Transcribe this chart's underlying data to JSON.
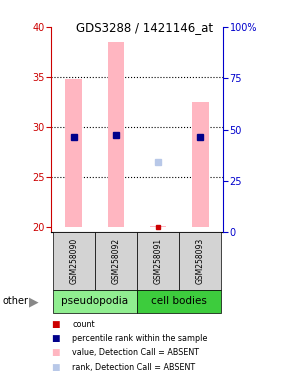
{
  "title": "GDS3288 / 1421146_at",
  "samples": [
    "GSM258090",
    "GSM258092",
    "GSM258091",
    "GSM258093"
  ],
  "group_colors": {
    "pseudopodia": "#90EE90",
    "cell bodies": "#3DCC3D"
  },
  "bar_color_absent": "#FFB6C1",
  "dot_color_rank_absent": "#B8C8E8",
  "dot_color_percentile": "#00008B",
  "dot_color_count": "#CC0000",
  "ylim_left": [
    19.5,
    40
  ],
  "ylim_right": [
    0,
    100
  ],
  "yticks_left": [
    20,
    25,
    30,
    35,
    40
  ],
  "yticks_right": [
    0,
    25,
    50,
    75,
    100
  ],
  "ytick_labels_right": [
    "0",
    "25",
    "50",
    "75",
    "100%"
  ],
  "bar_bottoms": [
    20,
    20,
    20,
    20
  ],
  "bar_tops": [
    34.8,
    38.5,
    20.15,
    32.5
  ],
  "bar_width": 0.4,
  "percentile_ranks": [
    29.0,
    29.2,
    null,
    29.0
  ],
  "rank_absent": [
    null,
    null,
    26.5,
    null
  ],
  "count_values": [
    null,
    null,
    20.08,
    null
  ],
  "grid_yticks": [
    25,
    30,
    35
  ],
  "left_axis_color": "#CC0000",
  "right_axis_color": "#0000CC",
  "groups_info": [
    {
      "label": "pseudopodia",
      "xstart": 0,
      "xend": 1,
      "color": "#90EE90"
    },
    {
      "label": "cell bodies",
      "xstart": 2,
      "xend": 3,
      "color": "#3DCC3D"
    }
  ],
  "legend_items": [
    {
      "color": "#CC0000",
      "label": "count"
    },
    {
      "color": "#00008B",
      "label": "percentile rank within the sample"
    },
    {
      "color": "#FFB6C1",
      "label": "value, Detection Call = ABSENT"
    },
    {
      "color": "#B8C8E8",
      "label": "rank, Detection Call = ABSENT"
    }
  ]
}
